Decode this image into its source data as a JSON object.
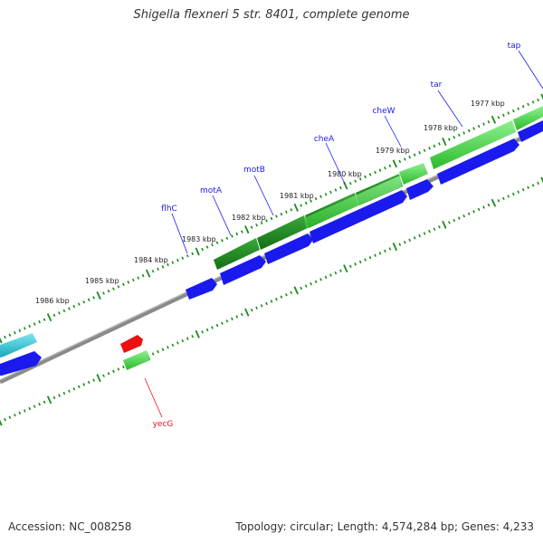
{
  "title": "Shigella flexneri 5 str. 8401, complete genome",
  "footer": {
    "accession": "Accession: NC_008258",
    "summary": "Topology: circular; Length: 4,574,284 bp; Genes: 4,233"
  },
  "kbp_labels": [
    "1977 kbp",
    "1978 kbp",
    "1979 kbp",
    "1980 kbp",
    "1981 kbp",
    "1982 kbp",
    "1983 kbp",
    "1984 kbp",
    "1985 kbp",
    "1986 kbp"
  ],
  "genes": [
    {
      "name": "tap",
      "strand": "forward",
      "color": "#0000cc"
    },
    {
      "name": "tar",
      "strand": "forward",
      "color": "#0000cc"
    },
    {
      "name": "cheW",
      "strand": "forward",
      "color": "#0000cc"
    },
    {
      "name": "cheA",
      "strand": "forward",
      "color": "#0000cc"
    },
    {
      "name": "motB",
      "strand": "forward",
      "color": "#0000cc"
    },
    {
      "name": "motA",
      "strand": "forward",
      "color": "#0000cc"
    },
    {
      "name": "flhC",
      "strand": "forward",
      "color": "#0000cc"
    },
    {
      "name": "yecG",
      "strand": "reverse",
      "color": "#cc0000"
    }
  ],
  "colors": {
    "forward_cds": "#1a1aee",
    "reverse_cds": "#ee1111",
    "dark_green_feature": "#1f8a1f",
    "light_green_feature": "#3ecc3e",
    "cyan_feature": "#22bbcc",
    "backbone": "#777777",
    "tick": "#1a8a1a"
  }
}
